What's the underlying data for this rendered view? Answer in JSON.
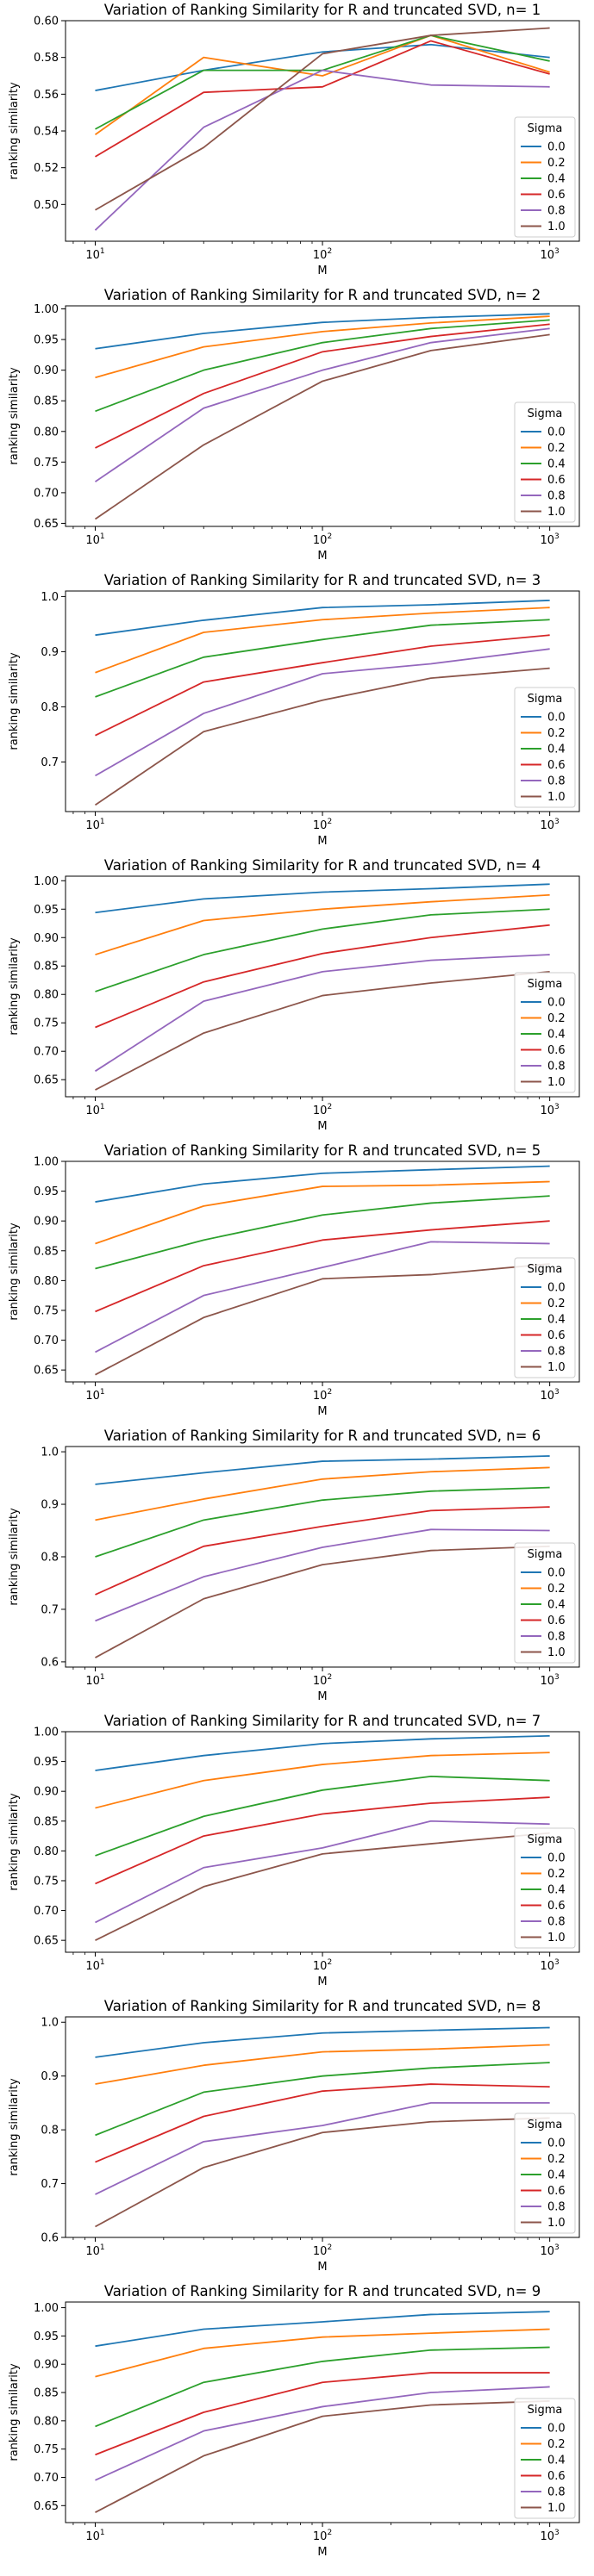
{
  "chart_data": [
    {
      "type": "line",
      "title": "Variation of Ranking Similarity for R and truncated SVD, n= 1",
      "xlabel": "M",
      "ylabel": "ranking similarity",
      "xscale": "log",
      "x": [
        10,
        30,
        100,
        300,
        1000
      ],
      "ylim": [
        0.48,
        0.6
      ],
      "yticks": [
        0.5,
        0.52,
        0.54,
        0.56,
        0.58,
        0.6
      ],
      "legend_title": "Sigma",
      "legend_position": "lower right",
      "series": [
        {
          "name": "0.0",
          "values": [
            0.562,
            0.573,
            0.583,
            0.587,
            0.58
          ]
        },
        {
          "name": "0.2",
          "values": [
            0.538,
            0.58,
            0.57,
            0.592,
            0.572
          ]
        },
        {
          "name": "0.4",
          "values": [
            0.541,
            0.573,
            0.573,
            0.592,
            0.578
          ]
        },
        {
          "name": "0.6",
          "values": [
            0.526,
            0.561,
            0.564,
            0.589,
            0.571
          ]
        },
        {
          "name": "0.8",
          "values": [
            0.486,
            0.542,
            0.573,
            0.565,
            0.564
          ]
        },
        {
          "name": "1.0",
          "values": [
            0.497,
            0.531,
            0.582,
            0.592,
            0.596
          ]
        }
      ]
    },
    {
      "type": "line",
      "title": "Variation of Ranking Similarity for R and truncated SVD, n= 2",
      "xlabel": "M",
      "ylabel": "ranking similarity",
      "xscale": "log",
      "x": [
        10,
        30,
        100,
        300,
        1000
      ],
      "ylim": [
        0.645,
        1.005
      ],
      "yticks": [
        0.65,
        0.7,
        0.75,
        0.8,
        0.85,
        0.9,
        0.95,
        1.0
      ],
      "legend_title": "Sigma",
      "legend_position": "lower right",
      "series": [
        {
          "name": "0.0",
          "values": [
            0.935,
            0.96,
            0.978,
            0.986,
            0.992
          ]
        },
        {
          "name": "0.2",
          "values": [
            0.888,
            0.938,
            0.963,
            0.977,
            0.988
          ]
        },
        {
          "name": "0.4",
          "values": [
            0.833,
            0.9,
            0.945,
            0.968,
            0.982
          ]
        },
        {
          "name": "0.6",
          "values": [
            0.773,
            0.862,
            0.93,
            0.955,
            0.975
          ]
        },
        {
          "name": "0.8",
          "values": [
            0.718,
            0.838,
            0.9,
            0.945,
            0.968
          ]
        },
        {
          "name": "1.0",
          "values": [
            0.657,
            0.778,
            0.882,
            0.932,
            0.958
          ]
        }
      ]
    },
    {
      "type": "line",
      "title": "Variation of Ranking Similarity for R and truncated SVD, n= 3",
      "xlabel": "M",
      "ylabel": "ranking similarity",
      "xscale": "log",
      "x": [
        10,
        30,
        100,
        300,
        1000
      ],
      "ylim": [
        0.61,
        1.01
      ],
      "yticks": [
        0.6,
        0.7,
        0.8,
        0.9,
        1.0
      ],
      "legend_title": "Sigma",
      "legend_position": "lower right",
      "series": [
        {
          "name": "0.0",
          "values": [
            0.93,
            0.957,
            0.98,
            0.985,
            0.993
          ]
        },
        {
          "name": "0.2",
          "values": [
            0.862,
            0.935,
            0.958,
            0.97,
            0.98
          ]
        },
        {
          "name": "0.4",
          "values": [
            0.818,
            0.89,
            0.922,
            0.948,
            0.958
          ]
        },
        {
          "name": "0.6",
          "values": [
            0.748,
            0.845,
            0.88,
            0.91,
            0.93
          ]
        },
        {
          "name": "0.8",
          "values": [
            0.675,
            0.788,
            0.86,
            0.878,
            0.905
          ]
        },
        {
          "name": "1.0",
          "values": [
            0.622,
            0.755,
            0.812,
            0.852,
            0.87
          ]
        }
      ]
    },
    {
      "type": "line",
      "title": "Variation of Ranking Similarity for R and truncated SVD, n= 4",
      "xlabel": "M",
      "ylabel": "ranking similarity",
      "xscale": "log",
      "x": [
        10,
        30,
        100,
        300,
        1000
      ],
      "ylim": [
        0.62,
        1.008
      ],
      "yticks": [
        0.65,
        0.7,
        0.75,
        0.8,
        0.85,
        0.9,
        0.95,
        1.0
      ],
      "legend_title": "Sigma",
      "legend_position": "lower right",
      "series": [
        {
          "name": "0.0",
          "values": [
            0.944,
            0.968,
            0.98,
            0.986,
            0.994
          ]
        },
        {
          "name": "0.2",
          "values": [
            0.87,
            0.93,
            0.95,
            0.963,
            0.975
          ]
        },
        {
          "name": "0.4",
          "values": [
            0.805,
            0.87,
            0.915,
            0.94,
            0.95
          ]
        },
        {
          "name": "0.6",
          "values": [
            0.742,
            0.822,
            0.872,
            0.9,
            0.922
          ]
        },
        {
          "name": "0.8",
          "values": [
            0.665,
            0.788,
            0.84,
            0.86,
            0.87
          ]
        },
        {
          "name": "1.0",
          "values": [
            0.632,
            0.732,
            0.798,
            0.82,
            0.84
          ]
        }
      ]
    },
    {
      "type": "line",
      "title": "Variation of Ranking Similarity for R and truncated SVD, n= 5",
      "xlabel": "M",
      "ylabel": "ranking similarity",
      "xscale": "log",
      "x": [
        10,
        30,
        100,
        300,
        1000
      ],
      "ylim": [
        0.63,
        1.0
      ],
      "yticks": [
        0.65,
        0.7,
        0.75,
        0.8,
        0.85,
        0.9,
        0.95,
        1.0
      ],
      "legend_title": "Sigma",
      "legend_position": "lower right",
      "series": [
        {
          "name": "0.0",
          "values": [
            0.932,
            0.962,
            0.98,
            0.986,
            0.992
          ]
        },
        {
          "name": "0.2",
          "values": [
            0.862,
            0.925,
            0.958,
            0.96,
            0.966
          ]
        },
        {
          "name": "0.4",
          "values": [
            0.82,
            0.868,
            0.91,
            0.93,
            0.942
          ]
        },
        {
          "name": "0.6",
          "values": [
            0.748,
            0.825,
            0.868,
            0.885,
            0.9
          ]
        },
        {
          "name": "0.8",
          "values": [
            0.68,
            0.775,
            0.822,
            0.865,
            0.862
          ]
        },
        {
          "name": "1.0",
          "values": [
            0.642,
            0.738,
            0.803,
            0.81,
            0.828
          ]
        }
      ]
    },
    {
      "type": "line",
      "title": "Variation of Ranking Similarity for R and truncated SVD, n= 6",
      "xlabel": "M",
      "ylabel": "ranking similarity",
      "xscale": "log",
      "x": [
        10,
        30,
        100,
        300,
        1000
      ],
      "ylim": [
        0.59,
        1.01
      ],
      "yticks": [
        0.6,
        0.7,
        0.8,
        0.9,
        1.0
      ],
      "legend_title": "Sigma",
      "legend_position": "lower right",
      "series": [
        {
          "name": "0.0",
          "values": [
            0.938,
            0.96,
            0.982,
            0.986,
            0.992
          ]
        },
        {
          "name": "0.2",
          "values": [
            0.87,
            0.91,
            0.948,
            0.962,
            0.97
          ]
        },
        {
          "name": "0.4",
          "values": [
            0.8,
            0.87,
            0.908,
            0.925,
            0.932
          ]
        },
        {
          "name": "0.6",
          "values": [
            0.728,
            0.82,
            0.858,
            0.888,
            0.895
          ]
        },
        {
          "name": "0.8",
          "values": [
            0.678,
            0.762,
            0.818,
            0.852,
            0.85
          ]
        },
        {
          "name": "1.0",
          "values": [
            0.608,
            0.72,
            0.785,
            0.812,
            0.82
          ]
        }
      ]
    },
    {
      "type": "line",
      "title": "Variation of Ranking Similarity for R and truncated SVD, n= 7",
      "xlabel": "M",
      "ylabel": "ranking similarity",
      "xscale": "log",
      "x": [
        10,
        30,
        100,
        300,
        1000
      ],
      "ylim": [
        0.63,
        1.0
      ],
      "yticks": [
        0.65,
        0.7,
        0.75,
        0.8,
        0.85,
        0.9,
        0.95,
        1.0
      ],
      "legend_title": "Sigma",
      "legend_position": "lower right",
      "series": [
        {
          "name": "0.0",
          "values": [
            0.935,
            0.96,
            0.98,
            0.988,
            0.993
          ]
        },
        {
          "name": "0.2",
          "values": [
            0.872,
            0.918,
            0.945,
            0.96,
            0.965
          ]
        },
        {
          "name": "0.4",
          "values": [
            0.792,
            0.858,
            0.902,
            0.925,
            0.918
          ]
        },
        {
          "name": "0.6",
          "values": [
            0.745,
            0.825,
            0.862,
            0.88,
            0.89
          ]
        },
        {
          "name": "0.8",
          "values": [
            0.68,
            0.772,
            0.805,
            0.85,
            0.845
          ]
        },
        {
          "name": "1.0",
          "values": [
            0.65,
            0.74,
            0.795,
            0.812,
            0.83
          ]
        }
      ]
    },
    {
      "type": "line",
      "title": "Variation of Ranking Similarity for R and truncated SVD, n= 8",
      "xlabel": "M",
      "ylabel": "ranking similarity",
      "xscale": "log",
      "x": [
        10,
        30,
        100,
        300,
        1000
      ],
      "ylim": [
        0.6,
        1.01
      ],
      "yticks": [
        0.6,
        0.7,
        0.8,
        0.9,
        1.0
      ],
      "legend_title": "Sigma",
      "legend_position": "lower right",
      "series": [
        {
          "name": "0.0",
          "values": [
            0.935,
            0.962,
            0.98,
            0.985,
            0.99
          ]
        },
        {
          "name": "0.2",
          "values": [
            0.885,
            0.92,
            0.945,
            0.95,
            0.958
          ]
        },
        {
          "name": "0.4",
          "values": [
            0.79,
            0.87,
            0.9,
            0.915,
            0.925
          ]
        },
        {
          "name": "0.6",
          "values": [
            0.74,
            0.825,
            0.872,
            0.885,
            0.88
          ]
        },
        {
          "name": "0.8",
          "values": [
            0.68,
            0.778,
            0.808,
            0.85,
            0.85
          ]
        },
        {
          "name": "1.0",
          "values": [
            0.62,
            0.73,
            0.795,
            0.815,
            0.822
          ]
        }
      ]
    },
    {
      "type": "line",
      "title": "Variation of Ranking Similarity for R and truncated SVD, n= 9",
      "xlabel": "M",
      "ylabel": "ranking similarity",
      "xscale": "log",
      "x": [
        10,
        30,
        100,
        300,
        1000
      ],
      "ylim": [
        0.62,
        1.01
      ],
      "yticks": [
        0.65,
        0.7,
        0.75,
        0.8,
        0.85,
        0.9,
        0.95,
        1.0
      ],
      "legend_title": "Sigma",
      "legend_position": "lower right",
      "series": [
        {
          "name": "0.0",
          "values": [
            0.932,
            0.962,
            0.975,
            0.988,
            0.993
          ]
        },
        {
          "name": "0.2",
          "values": [
            0.878,
            0.928,
            0.948,
            0.955,
            0.962
          ]
        },
        {
          "name": "0.4",
          "values": [
            0.79,
            0.868,
            0.905,
            0.925,
            0.93
          ]
        },
        {
          "name": "0.6",
          "values": [
            0.74,
            0.815,
            0.868,
            0.885,
            0.885
          ]
        },
        {
          "name": "0.8",
          "values": [
            0.695,
            0.782,
            0.825,
            0.85,
            0.86
          ]
        },
        {
          "name": "1.0",
          "values": [
            0.638,
            0.738,
            0.808,
            0.828,
            0.835
          ]
        }
      ]
    }
  ],
  "colors": {
    "series": [
      "#1f77b4",
      "#ff7f0e",
      "#2ca02c",
      "#d62728",
      "#9467bd",
      "#8c564b"
    ],
    "axis": "#000000",
    "background": "#ffffff"
  }
}
